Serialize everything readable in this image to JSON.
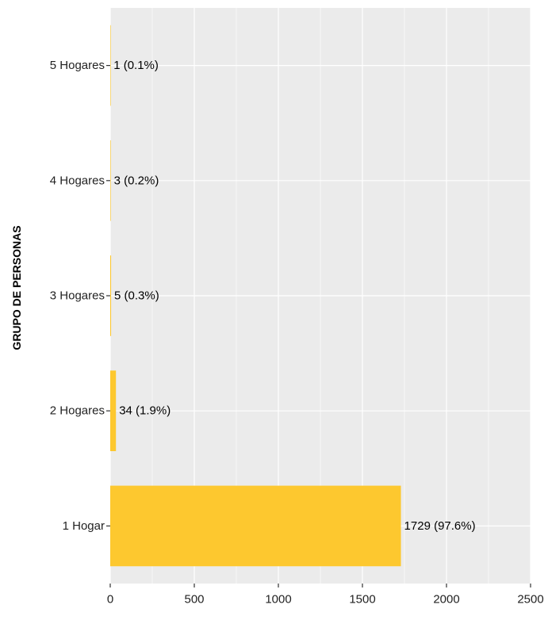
{
  "chart_data": {
    "type": "bar",
    "orientation": "horizontal",
    "categories": [
      "1 Hogar",
      "2 Hogares",
      "3 Hogares",
      "4 Hogares",
      "5 Hogares"
    ],
    "values": [
      1729,
      34,
      5,
      3,
      1
    ],
    "data_labels": [
      "1729 (97.6%)",
      "34 (1.9%)",
      "5 (0.3%)",
      "3 (0.2%)",
      "1 (0.1%)"
    ],
    "ylabel": "GRUPO DE PERSONAS",
    "xlim": [
      0,
      2500
    ],
    "x_ticks": [
      0,
      500,
      1000,
      1500,
      2000,
      2500
    ],
    "grid": true,
    "legend": "none",
    "bar_color": "#FDC82F",
    "panel_color": "#EBEBEB",
    "grid_color": "#FFFFFF"
  }
}
